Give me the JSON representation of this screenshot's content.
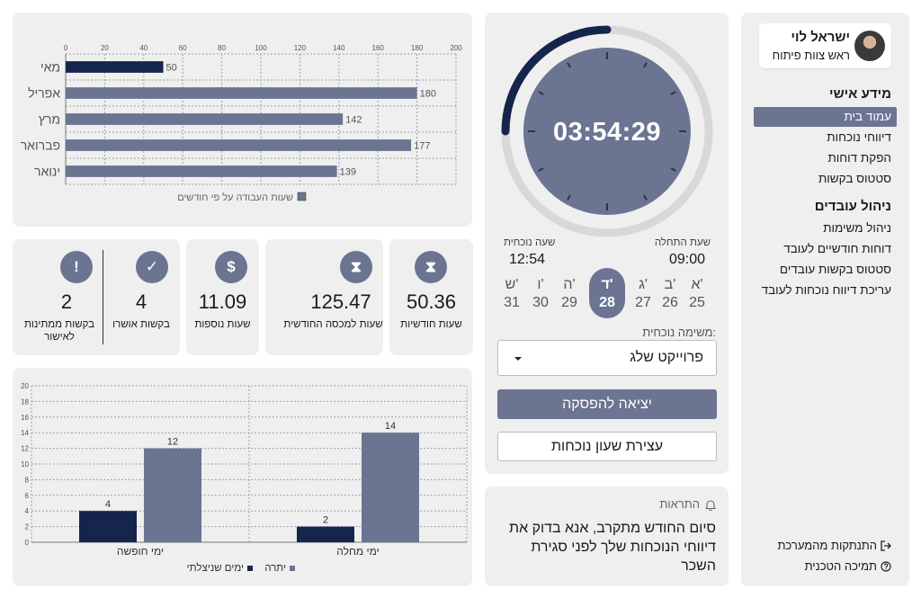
{
  "sidebar": {
    "user_name": "ישראל לוי",
    "user_role": "ראש צוות פיתוח",
    "personal_section": "מידע אישי",
    "personal_items": [
      "עמוד בית",
      "דיווחי נוכחות",
      "הפקת דוחות",
      "סטטוס בקשות"
    ],
    "management_section": "ניהול עובדים",
    "management_items": [
      "ניהול משימות",
      "דוחות חודשיים לעובד",
      "סטטוס בקשות עובדים",
      "עריכת דיווח נוכחות לעובד"
    ],
    "logout": "התנתקות מהמערכת",
    "support": "תמיכה הטכנית"
  },
  "clock": {
    "time": "03:54:29",
    "progress": 0.25,
    "start_label": "שעת התחלה",
    "start_time": "09:00",
    "current_label": "שעה נוכחית",
    "current_time": "12:54"
  },
  "week": [
    {
      "day": "א'",
      "num": "25"
    },
    {
      "day": "ב'",
      "num": "26"
    },
    {
      "day": "ג'",
      "num": "27"
    },
    {
      "day": "ד'",
      "num": "28",
      "active": true
    },
    {
      "day": "ה'",
      "num": "29"
    },
    {
      "day": "ו'",
      "num": "30"
    },
    {
      "day": "ש'",
      "num": "31"
    }
  ],
  "task": {
    "label": "משימה נוכחית:",
    "selected": "פרוייקט שלג"
  },
  "buttons": {
    "break": "יציאה להפסקה",
    "stop": "עצירת שעון נוכחות"
  },
  "alerts": {
    "title": "התראות",
    "message": "סיום החודש מתקרב, אנא בדוק את דיווחי הנוכחות שלך לפני סגירת השכר"
  },
  "stats": [
    {
      "icon": "hourglass-icon",
      "glyph": "⧗",
      "value": "50.36",
      "label": "שעות חודשיות"
    },
    {
      "icon": "hourglass-icon",
      "glyph": "⧗",
      "value": "125.47",
      "label": "שעות למכסה החודשית"
    },
    {
      "icon": "dollar-icon",
      "glyph": "$",
      "value": "11.09",
      "label": "שעות נוספות"
    },
    {
      "icon": "check-circle-icon",
      "glyph": "✓",
      "value": "4",
      "label": "בקשות אושרו"
    },
    {
      "icon": "clock-alert-icon",
      "glyph": "!",
      "value": "2",
      "label": "בקשות ממתינות לאישור"
    }
  ],
  "chart_data": [
    {
      "type": "bar",
      "orientation": "horizontal",
      "categories": [
        "מאי",
        "אפריל",
        "מרץ",
        "פברואר",
        "ינואר"
      ],
      "series": [
        {
          "name": "שעות העבודה על פי חודשים",
          "values": [
            50,
            180,
            142,
            177,
            139
          ],
          "color": "#6b7491"
        }
      ],
      "highlight": {
        "index": 0,
        "color": "#16254c"
      },
      "xlim": [
        0,
        200
      ],
      "xticks": [
        0,
        20,
        40,
        60,
        80,
        100,
        120,
        140,
        160,
        180,
        200
      ],
      "grid": true,
      "legend": "bottom"
    },
    {
      "type": "bar",
      "orientation": "vertical",
      "categories": [
        "ימי חופשה",
        "ימי מחלה"
      ],
      "series": [
        {
          "name": "ימים שניצלתי",
          "values": [
            4,
            2
          ],
          "color": "#16254c"
        },
        {
          "name": "יתרה",
          "values": [
            12,
            14
          ],
          "color": "#6b7491"
        }
      ],
      "ylim": [
        0,
        20
      ],
      "yticks": [
        0,
        2,
        4,
        6,
        8,
        10,
        12,
        14,
        16,
        18,
        20
      ],
      "grid": true,
      "legend": "bottom"
    }
  ]
}
